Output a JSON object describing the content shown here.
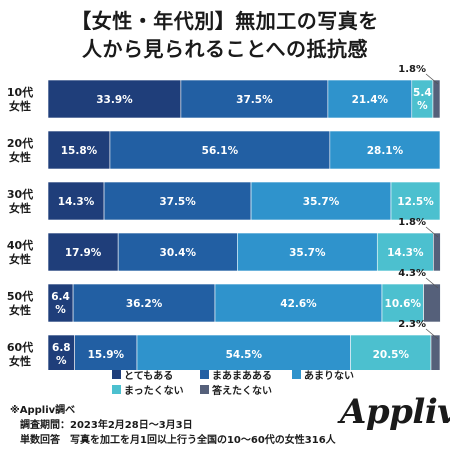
{
  "title": {
    "line1": "【女性・年代別】無加工の写真を",
    "line2": "人から見られることへの抵抗感"
  },
  "chart_data": {
    "type": "bar",
    "stacked": true,
    "orientation": "horizontal",
    "categories": [
      "10代\n女性",
      "20代\n女性",
      "30代\n女性",
      "40代\n女性",
      "50代\n女性",
      "60代\n女性"
    ],
    "series": [
      {
        "name": "とてもある",
        "color": "#1f3e7a",
        "values": [
          33.9,
          15.8,
          14.3,
          17.9,
          6.4,
          6.8
        ]
      },
      {
        "name": "まあまあある",
        "color": "#225fa3",
        "values": [
          37.5,
          56.1,
          37.5,
          30.4,
          36.2,
          15.9
        ]
      },
      {
        "name": "あまりない",
        "color": "#2f93cc",
        "values": [
          21.4,
          28.1,
          35.7,
          35.7,
          42.6,
          54.5
        ]
      },
      {
        "name": "まったくない",
        "color": "#4cc0cf",
        "values": [
          5.4,
          0.0,
          12.5,
          14.3,
          10.6,
          20.5
        ]
      },
      {
        "name": "答えたくない",
        "color": "#55607a",
        "values": [
          1.8,
          0.0,
          0.0,
          1.8,
          4.3,
          2.3
        ]
      }
    ],
    "labels": [
      [
        "33.9%",
        "37.5%",
        "21.4%",
        "5.4\n%",
        "1.8%"
      ],
      [
        "15.8%",
        "56.1%",
        "28.1%",
        "",
        ""
      ],
      [
        "14.3%",
        "37.5%",
        "35.7%",
        "12.5%",
        ""
      ],
      [
        "17.9%",
        "30.4%",
        "35.7%",
        "14.3%",
        "1.8%"
      ],
      [
        "6.4\n%",
        "36.2%",
        "42.6%",
        "10.6%",
        "4.3%"
      ],
      [
        "6.8\n%",
        "15.9%",
        "54.5%",
        "20.5%",
        "2.3%"
      ]
    ],
    "xlim": [
      0,
      100
    ],
    "legend_position": "bottom",
    "grid": false
  },
  "footnote": {
    "source": "※Appliv調べ",
    "period": "調査期間：2023年2月28日〜3月3日",
    "sample": "単数回答　写真を加工を月1回以上行う全国の10〜60代の女性316人"
  },
  "brand": "Appliv"
}
